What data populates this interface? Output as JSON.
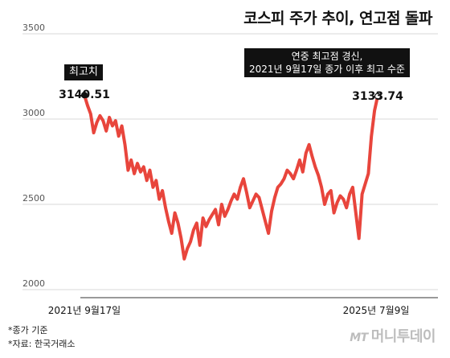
{
  "chart_data": {
    "type": "line",
    "title": "코스피 주가 추이, 연고점 돌파",
    "ylim": [
      2000,
      3500
    ],
    "yticks": [
      2000,
      2500,
      3000,
      3500
    ],
    "x_start_label": "2021년 9월17일",
    "x_end_label": "2025년 7월9일",
    "series": [
      {
        "values": [
          3140.51,
          3080,
          3030,
          2920,
          2980,
          3020,
          2990,
          2930,
          3010,
          2960,
          2990,
          2900,
          2960,
          2850,
          2700,
          2760,
          2680,
          2740,
          2690,
          2720,
          2640,
          2700,
          2600,
          2640,
          2530,
          2580,
          2480,
          2400,
          2330,
          2450,
          2390,
          2300,
          2180,
          2240,
          2280,
          2350,
          2390,
          2260,
          2420,
          2370,
          2410,
          2440,
          2470,
          2380,
          2500,
          2430,
          2470,
          2520,
          2560,
          2530,
          2600,
          2650,
          2570,
          2480,
          2520,
          2560,
          2540,
          2470,
          2400,
          2330,
          2460,
          2540,
          2600,
          2620,
          2650,
          2700,
          2680,
          2650,
          2700,
          2760,
          2690,
          2800,
          2850,
          2780,
          2720,
          2670,
          2600,
          2500,
          2560,
          2580,
          2450,
          2510,
          2550,
          2530,
          2480,
          2560,
          2600,
          2450,
          2300,
          2560,
          2620,
          2680,
          2900,
          3050,
          3133.74
        ],
        "color": "#e8453c"
      }
    ],
    "annotations": [
      {
        "box_text": "최고치",
        "value_label": "3140.51",
        "value": 3140.51
      },
      {
        "box_text": [
          "연중 최고점 경신,",
          "2021년 9월17일 종가 이후 최고 수준"
        ],
        "value_label": "3133.74",
        "value": 3133.74
      }
    ]
  },
  "footnotes": [
    "*종가 기준",
    "*자료: 한국거래소"
  ],
  "logo": {
    "mt": "MT",
    "name": "머니투데이"
  }
}
